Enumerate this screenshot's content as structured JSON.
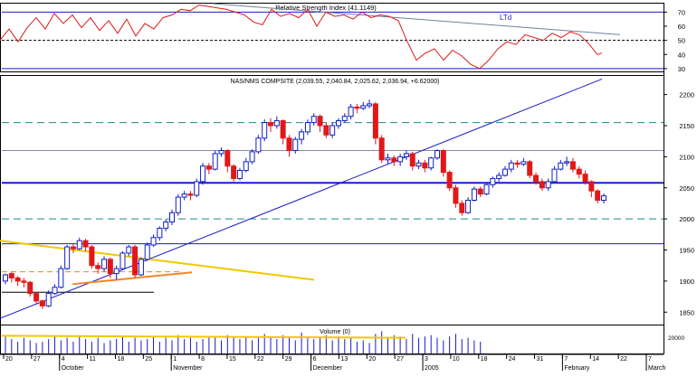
{
  "colors": {
    "up": "#1020c0",
    "down": "#e01818",
    "trend": "#1a1acc",
    "rsi": "#e01818",
    "yellow": "#f0c800",
    "orange": "#f08828",
    "teal": "#1a8a8a",
    "volume": "#1a1acc",
    "grid": "#000000"
  },
  "chart_data": [
    {
      "type": "line",
      "title": "Relative Strength Index (41.1149)",
      "annotation": "LTd",
      "ylim": [
        28,
        76
      ],
      "yticks": [
        30,
        40,
        50,
        60,
        70
      ],
      "levels": [
        30,
        50,
        70
      ],
      "x": [
        0,
        10,
        20,
        30,
        40,
        50,
        60,
        70,
        80,
        90,
        100,
        110,
        120,
        130,
        140,
        150,
        160,
        170,
        180,
        190,
        200,
        210,
        220,
        230,
        240,
        250,
        260,
        270,
        280,
        290,
        300,
        310,
        320,
        330,
        340,
        350,
        360,
        370,
        380,
        390,
        400,
        410,
        420,
        430,
        440,
        450,
        460,
        470,
        480,
        490,
        500,
        510,
        520,
        530,
        540,
        550,
        560,
        570,
        580,
        590,
        600,
        610,
        620,
        630,
        640,
        650,
        660,
        665
      ],
      "values": [
        50,
        58,
        49,
        59,
        66,
        58,
        69,
        62,
        68,
        59,
        66,
        57,
        64,
        55,
        65,
        53,
        62,
        58,
        66,
        68,
        72,
        71,
        75,
        74,
        73,
        72,
        70,
        68,
        63,
        61,
        72,
        67,
        69,
        66,
        72,
        60,
        70,
        67,
        68,
        65,
        70,
        66,
        68,
        67,
        64,
        49,
        36,
        41,
        44,
        36,
        43,
        39,
        33,
        30,
        36,
        44,
        49,
        47,
        54,
        52,
        50,
        55,
        52,
        56,
        54,
        48,
        40,
        41
      ],
      "series": [
        {
          "name": "",
          "trendline": [
            [
              235,
              76
            ],
            [
              685,
              54
            ]
          ]
        }
      ]
    },
    {
      "type": "bar",
      "title": "NAS/NMS COMPSITE (2,039.55, 2,040.84, 2,025.62, 2,036.94, +6.62000)",
      "ylim": [
        1830,
        2230
      ],
      "yticks": [
        1850,
        1900,
        1950,
        2000,
        2050,
        2100,
        2150,
        2200
      ],
      "date_labels": [
        "20",
        "27",
        "4",
        "11",
        "18",
        "25",
        "1",
        "8",
        "15",
        "22",
        "29",
        "6",
        "13",
        "20",
        "27",
        "3",
        "10",
        "18",
        "24",
        "31",
        "7",
        "14",
        "22",
        "7"
      ],
      "month_labels": [
        "October",
        "November",
        "December",
        "2005",
        "February",
        "March"
      ],
      "candles": [
        [
          1900,
          1910,
          1895,
          1912
        ],
        [
          1912,
          1905,
          1898,
          1915
        ],
        [
          1905,
          1900,
          1892,
          1908
        ],
        [
          1900,
          1898,
          1890,
          1905
        ],
        [
          1898,
          1880,
          1875,
          1900
        ],
        [
          1880,
          1868,
          1862,
          1882
        ],
        [
          1868,
          1860,
          1855,
          1870
        ],
        [
          1860,
          1880,
          1858,
          1885
        ],
        [
          1880,
          1890,
          1878,
          1895
        ],
        [
          1890,
          1920,
          1888,
          1925
        ],
        [
          1920,
          1955,
          1918,
          1958
        ],
        [
          1955,
          1952,
          1945,
          1960
        ],
        [
          1952,
          1965,
          1950,
          1970
        ],
        [
          1965,
          1955,
          1948,
          1968
        ],
        [
          1955,
          1925,
          1920,
          1958
        ],
        [
          1925,
          1920,
          1912,
          1930
        ],
        [
          1920,
          1935,
          1915,
          1940
        ],
        [
          1935,
          1912,
          1905,
          1938
        ],
        [
          1912,
          1920,
          1902,
          1925
        ],
        [
          1920,
          1945,
          1918,
          1948
        ],
        [
          1945,
          1955,
          1940,
          1958
        ],
        [
          1955,
          1910,
          1905,
          1958
        ],
        [
          1910,
          1935,
          1908,
          1938
        ],
        [
          1935,
          1958,
          1932,
          1962
        ],
        [
          1958,
          1970,
          1955,
          1975
        ],
        [
          1970,
          1985,
          1965,
          1988
        ],
        [
          1985,
          1995,
          1980,
          2000
        ],
        [
          1995,
          2010,
          1990,
          2015
        ],
        [
          2010,
          2035,
          2005,
          2040
        ],
        [
          2035,
          2040,
          2030,
          2045
        ],
        [
          2040,
          2038,
          2030,
          2045
        ],
        [
          2038,
          2060,
          2035,
          2065
        ],
        [
          2060,
          2085,
          2055,
          2090
        ],
        [
          2085,
          2080,
          2072,
          2090
        ],
        [
          2080,
          2105,
          2078,
          2110
        ],
        [
          2105,
          2110,
          2100,
          2115
        ],
        [
          2110,
          2085,
          2075,
          2112
        ],
        [
          2085,
          2065,
          2060,
          2088
        ],
        [
          2065,
          2078,
          2062,
          2082
        ],
        [
          2078,
          2092,
          2075,
          2098
        ],
        [
          2092,
          2108,
          2088,
          2112
        ],
        [
          2108,
          2130,
          2105,
          2135
        ],
        [
          2130,
          2155,
          2125,
          2160
        ],
        [
          2155,
          2150,
          2140,
          2162
        ],
        [
          2150,
          2158,
          2145,
          2165
        ],
        [
          2158,
          2130,
          2120,
          2160
        ],
        [
          2130,
          2110,
          2100,
          2135
        ],
        [
          2110,
          2128,
          2105,
          2132
        ],
        [
          2128,
          2140,
          2120,
          2145
        ],
        [
          2140,
          2155,
          2135,
          2160
        ],
        [
          2155,
          2165,
          2150,
          2170
        ],
        [
          2165,
          2150,
          2140,
          2168
        ],
        [
          2150,
          2135,
          2130,
          2155
        ],
        [
          2135,
          2150,
          2130,
          2155
        ],
        [
          2150,
          2158,
          2145,
          2162
        ],
        [
          2158,
          2165,
          2155,
          2170
        ],
        [
          2165,
          2180,
          2160,
          2185
        ],
        [
          2180,
          2178,
          2170,
          2185
        ],
        [
          2178,
          2182,
          2175,
          2188
        ],
        [
          2182,
          2185,
          2178,
          2192
        ],
        [
          2185,
          2130,
          2120,
          2188
        ],
        [
          2130,
          2095,
          2090,
          2135
        ],
        [
          2095,
          2098,
          2088,
          2105
        ],
        [
          2098,
          2092,
          2085,
          2102
        ],
        [
          2092,
          2100,
          2085,
          2105
        ],
        [
          2100,
          2105,
          2095,
          2110
        ],
        [
          2105,
          2085,
          2078,
          2108
        ],
        [
          2085,
          2090,
          2080,
          2095
        ],
        [
          2090,
          2082,
          2075,
          2095
        ],
        [
          2082,
          2098,
          2078,
          2100
        ],
        [
          2098,
          2110,
          2095,
          2112
        ],
        [
          2110,
          2075,
          2068,
          2112
        ],
        [
          2075,
          2050,
          2045,
          2078
        ],
        [
          2050,
          2025,
          2018,
          2055
        ],
        [
          2025,
          2010,
          2005,
          2030
        ],
        [
          2010,
          2030,
          2008,
          2035
        ],
        [
          2030,
          2048,
          2028,
          2052
        ],
        [
          2048,
          2040,
          2035,
          2052
        ],
        [
          2040,
          2055,
          2038,
          2058
        ],
        [
          2055,
          2065,
          2050,
          2068
        ],
        [
          2065,
          2070,
          2060,
          2075
        ],
        [
          2070,
          2080,
          2068,
          2085
        ],
        [
          2080,
          2090,
          2075,
          2095
        ],
        [
          2090,
          2088,
          2082,
          2095
        ],
        [
          2088,
          2092,
          2085,
          2098
        ],
        [
          2092,
          2070,
          2065,
          2095
        ],
        [
          2070,
          2060,
          2055,
          2075
        ],
        [
          2060,
          2050,
          2045,
          2065
        ],
        [
          2050,
          2060,
          2045,
          2065
        ],
        [
          2060,
          2080,
          2058,
          2085
        ],
        [
          2080,
          2090,
          2078,
          2095
        ],
        [
          2090,
          2092,
          2085,
          2100
        ],
        [
          2092,
          2080,
          2075,
          2098
        ],
        [
          2080,
          2072,
          2065,
          2085
        ],
        [
          2072,
          2060,
          2055,
          2078
        ],
        [
          2060,
          2045,
          2035,
          2062
        ],
        [
          2045,
          2030,
          2025,
          2048
        ],
        [
          2030,
          2037,
          2025,
          2041
        ]
      ],
      "series": [
        {
          "name": "",
          "role": "uptrend",
          "points": [
            [
              0,
              1840
            ],
            [
              665,
              2225
            ]
          ]
        },
        {
          "name": "",
          "role": "resistance",
          "points": [
            [
              0,
              1965
            ],
            [
              347,
              1902
            ]
          ]
        },
        {
          "name": "",
          "role": "support",
          "points": [
            [
              80,
              1895
            ],
            [
              212,
              1914
            ]
          ]
        }
      ],
      "levels_blue": [
        2058,
        1960
      ],
      "levels_teal": [
        2155,
        2000
      ],
      "levels_gray": [
        2110
      ],
      "dashed_orange": 1915,
      "level_black": 1882
    },
    {
      "type": "bar",
      "title": "Volume (0)",
      "ylim": [
        0,
        20000
      ],
      "ytick_label": "20000",
      "values": [
        13000,
        11000,
        9000,
        12000,
        10000,
        8000,
        9000,
        11000,
        13000,
        10000,
        12000,
        9000,
        14000,
        11000,
        9000,
        12000,
        8000,
        10000,
        11000,
        13000,
        9000,
        12000,
        10000,
        11000,
        13000,
        9000,
        12000,
        10000,
        14000,
        11000,
        12000,
        9000,
        11000,
        13000,
        12000,
        10000,
        14000,
        12000,
        11000,
        13000,
        10000,
        12000,
        15000,
        13000,
        11000,
        14000,
        12000,
        10000,
        16000,
        13000,
        11000,
        12000,
        14000,
        10000,
        13000,
        11000,
        12000,
        9000,
        10000,
        8000,
        15000,
        17000,
        12000,
        14000,
        13000,
        11000,
        15000,
        12000,
        13000,
        14000,
        12000,
        10000,
        13000,
        15000,
        11000,
        12000,
        10000,
        9000,
        0,
        0,
        0,
        0,
        0,
        0,
        0,
        0,
        0,
        0,
        0,
        0,
        0,
        0,
        0,
        0,
        0,
        0
      ],
      "volume_ma_color": "yellow"
    }
  ]
}
